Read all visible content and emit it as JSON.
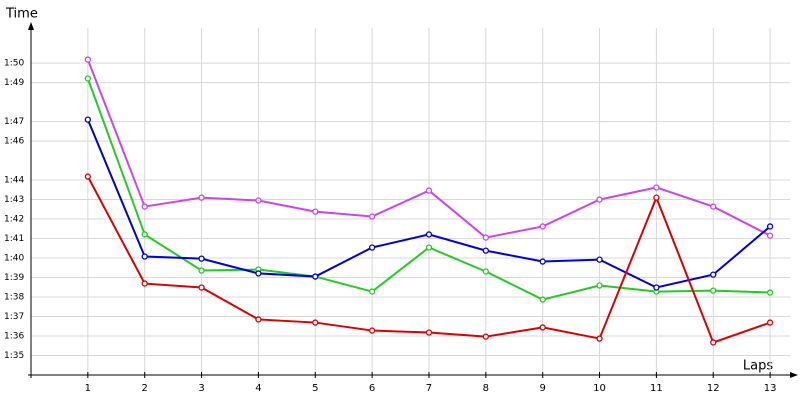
{
  "chart_data": {
    "type": "line",
    "y_label": "Time",
    "x_label": "Laps",
    "x": [
      1,
      2,
      3,
      4,
      5,
      6,
      7,
      8,
      9,
      10,
      11,
      12,
      13
    ],
    "xlim": [
      0,
      13.35
    ],
    "xticks": [
      1,
      2,
      3,
      4,
      5,
      6,
      7,
      8,
      9,
      10,
      11,
      12,
      13
    ],
    "ylim": [
      94,
      111.8
    ],
    "yticks": [
      {
        "value": 95,
        "label": "1:35"
      },
      {
        "value": 96,
        "label": "1:36"
      },
      {
        "value": 97,
        "label": "1:37"
      },
      {
        "value": 98,
        "label": "1:38"
      },
      {
        "value": 99,
        "label": "1:39"
      },
      {
        "value": 100,
        "label": "1:40"
      },
      {
        "value": 101,
        "label": "1:41"
      },
      {
        "value": 102,
        "label": "1:42"
      },
      {
        "value": 103,
        "label": "1:43"
      },
      {
        "value": 104,
        "label": "1:44"
      },
      {
        "value": 106,
        "label": "1:46"
      },
      {
        "value": 107,
        "label": "1:47"
      },
      {
        "value": 109,
        "label": "1:49"
      },
      {
        "value": 110,
        "label": "1:50"
      }
    ],
    "grid": true,
    "series": [
      {
        "color": "#cc44ee",
        "values": [
          110.18,
          102.64,
          103.1,
          102.95,
          102.38,
          102.13,
          103.46,
          101.05,
          101.62,
          103.0,
          103.62,
          102.64,
          101.15
        ]
      },
      {
        "color": "#22cc22",
        "values": [
          109.21,
          101.21,
          99.36,
          99.41,
          99.05,
          98.28,
          100.54,
          99.31,
          97.87,
          98.59,
          98.28,
          98.33,
          98.23
        ]
      },
      {
        "color": "#0000dd",
        "values": [
          107.1,
          100.08,
          99.97,
          99.21,
          99.05,
          100.54,
          101.21,
          100.38,
          99.82,
          99.92,
          98.49,
          99.15,
          101.62
        ]
      },
      {
        "color": "#dd0000",
        "values": [
          104.18,
          98.69,
          98.49,
          96.85,
          96.69,
          96.28,
          96.18,
          95.97,
          96.44,
          95.87,
          103.1,
          95.67,
          96.69
        ]
      }
    ]
  }
}
